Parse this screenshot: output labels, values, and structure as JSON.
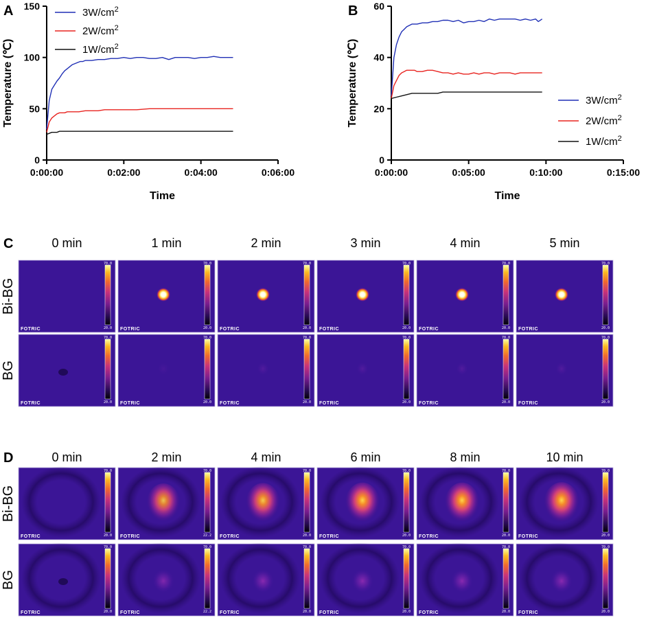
{
  "chart_data": [
    {
      "panel": "A",
      "type": "line",
      "xlabel": "Time",
      "ylabel": "Temperature (℃)",
      "x_ticks": [
        "0:00:00",
        "0:02:00",
        "0:04:00",
        "0:06:00"
      ],
      "x_range_seconds": [
        0,
        360
      ],
      "y_ticks": [
        "0",
        "50",
        "100",
        "150"
      ],
      "ylim": [
        0,
        150
      ],
      "legend_position": "top-left",
      "series": [
        {
          "name": "3W/cm",
          "sup": "2",
          "color": "#1f2fb5",
          "x": [
            0,
            4,
            8,
            12,
            16,
            20,
            24,
            28,
            32,
            36,
            40,
            44,
            48,
            52,
            56,
            60,
            70,
            80,
            90,
            100,
            110,
            120,
            130,
            140,
            150,
            160,
            170,
            180,
            190,
            200,
            210,
            220,
            230,
            240,
            250,
            260,
            270,
            280,
            290
          ],
          "y": [
            30,
            58,
            69,
            73,
            77,
            80,
            84,
            87,
            89,
            91,
            93,
            94,
            95,
            96,
            96,
            97,
            97,
            98,
            98,
            99,
            99,
            100,
            99,
            100,
            100,
            99,
            99,
            100,
            98,
            100,
            100,
            100,
            99,
            100,
            100,
            101,
            100,
            100,
            100
          ]
        },
        {
          "name": "2W/cm",
          "sup": "2",
          "color": "#e8231f",
          "x": [
            0,
            4,
            8,
            12,
            16,
            20,
            24,
            28,
            32,
            36,
            40,
            50,
            60,
            70,
            80,
            90,
            100,
            120,
            140,
            160,
            180,
            200,
            220,
            240,
            260,
            280,
            290
          ],
          "y": [
            27,
            37,
            41,
            43,
            45,
            46,
            46,
            46,
            47,
            47,
            47,
            47,
            48,
            48,
            48,
            49,
            49,
            49,
            49,
            50,
            50,
            50,
            50,
            50,
            50,
            50,
            50
          ]
        },
        {
          "name": "1W/cm",
          "sup": "2",
          "color": "#111111",
          "x": [
            0,
            4,
            8,
            12,
            16,
            20,
            30,
            40,
            60,
            80,
            100,
            120,
            140,
            160,
            180,
            200,
            220,
            240,
            260,
            280,
            290
          ],
          "y": [
            25,
            26,
            27,
            27,
            27,
            28,
            28,
            28,
            28,
            28,
            28,
            28,
            28,
            28,
            28,
            28,
            28,
            28,
            28,
            28,
            28
          ]
        }
      ]
    },
    {
      "panel": "B",
      "type": "line",
      "xlabel": "Time",
      "ylabel": "Temperature (℃)",
      "x_ticks": [
        "0:00:00",
        "0:05:00",
        "0:10:00",
        "0:15:00"
      ],
      "x_range_seconds": [
        0,
        900
      ],
      "y_ticks": [
        "0",
        "20",
        "40",
        "60"
      ],
      "ylim": [
        0,
        60
      ],
      "legend_position": "right",
      "series": [
        {
          "name": "3W/cm",
          "sup": "2",
          "color": "#1f2fb5",
          "x": [
            0,
            10,
            20,
            30,
            40,
            50,
            60,
            70,
            80,
            90,
            100,
            120,
            140,
            160,
            180,
            200,
            220,
            240,
            260,
            280,
            300,
            320,
            340,
            360,
            380,
            400,
            420,
            440,
            460,
            480,
            500,
            520,
            540,
            560,
            570,
            585
          ],
          "y": [
            25,
            40,
            45,
            48,
            50,
            51,
            52,
            52.5,
            53,
            53,
            53,
            53.5,
            53.5,
            54,
            54,
            54.5,
            54.5,
            54,
            54.5,
            53.5,
            54,
            54,
            54.5,
            54,
            55,
            54.5,
            55,
            55,
            55,
            55,
            54.5,
            55,
            54.5,
            55,
            54,
            55
          ]
        },
        {
          "name": "2W/cm",
          "sup": "2",
          "color": "#e8231f",
          "x": [
            0,
            10,
            20,
            30,
            40,
            50,
            60,
            70,
            80,
            90,
            100,
            120,
            140,
            160,
            180,
            200,
            220,
            240,
            260,
            280,
            300,
            320,
            340,
            360,
            380,
            400,
            420,
            440,
            460,
            480,
            500,
            520,
            540,
            560,
            585
          ],
          "y": [
            24,
            29,
            31,
            33,
            34,
            34.5,
            35,
            35,
            35,
            35,
            34.5,
            34.5,
            35,
            35,
            34.5,
            34,
            34,
            33.5,
            34,
            33.5,
            33.5,
            34,
            33.5,
            34,
            34,
            33.5,
            34,
            34,
            34,
            33.5,
            34,
            34,
            34,
            34,
            34
          ]
        },
        {
          "name": "1W/cm",
          "sup": "2",
          "color": "#111111",
          "x": [
            0,
            20,
            40,
            60,
            80,
            100,
            120,
            140,
            160,
            180,
            200,
            240,
            280,
            320,
            360,
            400,
            440,
            480,
            520,
            560,
            585
          ],
          "y": [
            24,
            24.5,
            25,
            25.5,
            26,
            26,
            26,
            26,
            26,
            26,
            26.5,
            26.5,
            26.5,
            26.5,
            26.5,
            26.5,
            26.5,
            26.5,
            26.5,
            26.5,
            26.5
          ]
        }
      ]
    }
  ],
  "thermal": {
    "C": {
      "panel": "C",
      "time_labels": [
        "0 min",
        "1 min",
        "2 min",
        "3 min",
        "4 min",
        "5 min"
      ],
      "rows": [
        {
          "label": "Bi-BG",
          "cells": [
            {
              "kind": "none",
              "peak": 0.0
            },
            {
              "kind": "spot",
              "peak": 1.0
            },
            {
              "kind": "spot",
              "peak": 1.0
            },
            {
              "kind": "spot",
              "peak": 1.0
            },
            {
              "kind": "spot",
              "peak": 1.0
            },
            {
              "kind": "spot",
              "peak": 1.0
            }
          ]
        },
        {
          "label": "BG",
          "cells": [
            {
              "kind": "dark",
              "peak": 0.0
            },
            {
              "kind": "faint",
              "peak": 0.05
            },
            {
              "kind": "faint",
              "peak": 0.1
            },
            {
              "kind": "faint",
              "peak": 0.1
            },
            {
              "kind": "faint",
              "peak": 0.1
            },
            {
              "kind": "faint",
              "peak": 0.1
            }
          ]
        }
      ],
      "scale_max": [
        "70.0",
        "70.0",
        "70.0",
        "70.0",
        "70.0",
        "70.0"
      ],
      "scale_min": [
        "20.0",
        "20.0",
        "20.0",
        "20.0",
        "20.0",
        "20.0"
      ]
    },
    "D": {
      "panel": "D",
      "time_labels": [
        "0 min",
        "2 min",
        "4 min",
        "6 min",
        "8 min",
        "10 min"
      ],
      "rows": [
        {
          "label": "Bi-BG",
          "cells": [
            {
              "kind": "none",
              "peak": 0.0
            },
            {
              "kind": "diffuse",
              "peak": 0.75
            },
            {
              "kind": "diffuse",
              "peak": 0.8
            },
            {
              "kind": "diffuse",
              "peak": 0.85
            },
            {
              "kind": "diffuse",
              "peak": 0.85
            },
            {
              "kind": "diffuse",
              "peak": 0.9
            }
          ]
        },
        {
          "label": "BG",
          "cells": [
            {
              "kind": "dark",
              "peak": 0.0
            },
            {
              "kind": "faint",
              "peak": 0.3
            },
            {
              "kind": "faint",
              "peak": 0.35
            },
            {
              "kind": "faint",
              "peak": 0.35
            },
            {
              "kind": "faint",
              "peak": 0.35
            },
            {
              "kind": "faint",
              "peak": 0.35
            }
          ]
        }
      ],
      "scale_max": [
        "70.0",
        "70.0",
        "70.0",
        "70.0",
        "70.0",
        "70.0"
      ],
      "scale_min": [
        "20.0",
        "22.2",
        "20.0",
        "20.0",
        "20.0",
        "20.0"
      ]
    },
    "brand": "FOTRIC"
  }
}
